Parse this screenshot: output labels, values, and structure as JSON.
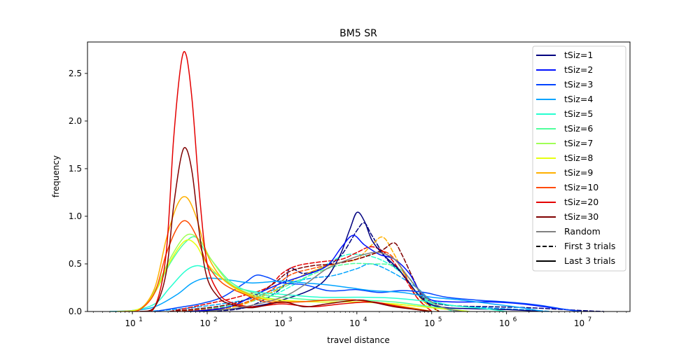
{
  "chart_data": {
    "type": "line",
    "title": "BM5 SR",
    "xlabel": "travel distance",
    "ylabel": "frequency",
    "xscale": "log",
    "xlim_log10": [
      0.4,
      7.65
    ],
    "ylim": [
      0,
      2.83
    ],
    "x_ticks": [
      {
        "base": "10",
        "exp": "1",
        "value": 10
      },
      {
        "base": "10",
        "exp": "2",
        "value": 100
      },
      {
        "base": "10",
        "exp": "3",
        "value": 1000
      },
      {
        "base": "10",
        "exp": "4",
        "value": 10000
      },
      {
        "base": "10",
        "exp": "5",
        "value": 100000
      },
      {
        "base": "10",
        "exp": "6",
        "value": 1000000
      },
      {
        "base": "10",
        "exp": "7",
        "value": 10000000
      }
    ],
    "y_ticks": [
      "0.0",
      "0.5",
      "1.0",
      "1.5",
      "2.0",
      "2.5"
    ],
    "legend_position": "top-right",
    "legend": [
      {
        "label": "tSiz=1",
        "color": "#00007f",
        "dash": "solid"
      },
      {
        "label": "tSiz=2",
        "color": "#0010ff",
        "dash": "solid"
      },
      {
        "label": "tSiz=3",
        "color": "#0044ff",
        "dash": "solid"
      },
      {
        "label": "tSiz=4",
        "color": "#00a4ff",
        "dash": "solid"
      },
      {
        "label": "tSiz=5",
        "color": "#26ffd0",
        "dash": "solid"
      },
      {
        "label": "tSiz=6",
        "color": "#50ff9c",
        "dash": "solid"
      },
      {
        "label": "tSiz=7",
        "color": "#a0ff56",
        "dash": "solid"
      },
      {
        "label": "tSiz=8",
        "color": "#e6ff10",
        "dash": "solid"
      },
      {
        "label": "tSiz=9",
        "color": "#ffb000",
        "dash": "solid"
      },
      {
        "label": "tSiz=10",
        "color": "#ff4a00",
        "dash": "solid"
      },
      {
        "label": "tSiz=20",
        "color": "#e40000",
        "dash": "solid"
      },
      {
        "label": "tSiz=30",
        "color": "#7f0000",
        "dash": "solid"
      },
      {
        "label": "Random",
        "color": "#808080",
        "dash": "solid"
      },
      {
        "label": "First 3 trials",
        "color": "#000000",
        "dash": "dashed"
      },
      {
        "label": "Last 3 trials",
        "color": "#000000",
        "dash": "solid"
      }
    ],
    "series": [
      {
        "name": "tSiz=1 last",
        "color": "#00007f",
        "dash": "solid",
        "x_log10": [
          1.7,
          2.2,
          2.6,
          3.0,
          3.5,
          3.75,
          3.9,
          4.0,
          4.1,
          4.2,
          4.35,
          4.55,
          4.7,
          4.85,
          5.0,
          5.2,
          5.5,
          6.0,
          6.5
        ],
        "values": [
          0.0,
          0.02,
          0.05,
          0.12,
          0.28,
          0.55,
          0.85,
          1.04,
          0.95,
          0.75,
          0.6,
          0.45,
          0.3,
          0.15,
          0.07,
          0.04,
          0.03,
          0.02,
          0.0
        ]
      },
      {
        "name": "tSiz=1 first",
        "color": "#00007f",
        "dash": "dashed",
        "x_log10": [
          1.8,
          2.5,
          3.0,
          3.1,
          3.3,
          3.6,
          3.8,
          4.0,
          4.1,
          4.2,
          4.4,
          4.6,
          4.8,
          5.0,
          5.3,
          5.8,
          6.3,
          7.0,
          7.3
        ],
        "values": [
          0.0,
          0.04,
          0.25,
          0.45,
          0.4,
          0.48,
          0.6,
          0.85,
          0.93,
          0.8,
          0.55,
          0.4,
          0.2,
          0.1,
          0.06,
          0.05,
          0.04,
          0.01,
          0.0
        ]
      },
      {
        "name": "tSiz=2 last",
        "color": "#0010ff",
        "dash": "solid",
        "x_log10": [
          1.8,
          2.3,
          2.65,
          3.0,
          3.3,
          3.6,
          3.8,
          3.95,
          4.1,
          4.3,
          4.5,
          4.7,
          4.85,
          5.0,
          5.3,
          5.8,
          6.2,
          6.6,
          7.0
        ],
        "values": [
          0.0,
          0.05,
          0.18,
          0.3,
          0.38,
          0.48,
          0.68,
          0.8,
          0.7,
          0.6,
          0.55,
          0.4,
          0.2,
          0.12,
          0.1,
          0.1,
          0.08,
          0.04,
          0.0
        ]
      },
      {
        "name": "tSiz=3 last",
        "color": "#0044ff",
        "dash": "solid",
        "x_log10": [
          1.3,
          1.6,
          1.9,
          2.2,
          2.5,
          2.65,
          2.8,
          3.0,
          3.3,
          3.6,
          3.8,
          4.0,
          4.3,
          4.6,
          4.9,
          5.2,
          5.6,
          6.0,
          6.4,
          6.8,
          7.0
        ],
        "values": [
          0.0,
          0.04,
          0.08,
          0.15,
          0.3,
          0.38,
          0.36,
          0.3,
          0.28,
          0.22,
          0.22,
          0.23,
          0.2,
          0.22,
          0.2,
          0.15,
          0.12,
          0.1,
          0.07,
          0.02,
          0.0
        ]
      },
      {
        "name": "tSiz=4 last",
        "color": "#00a4ff",
        "dash": "solid",
        "x_log10": [
          0.7,
          1.0,
          1.3,
          1.6,
          1.8,
          2.0,
          2.3,
          2.6,
          3.0,
          3.3,
          3.6,
          3.9,
          4.2,
          4.6,
          5.0,
          5.4,
          5.8,
          6.2,
          6.5
        ],
        "values": [
          0.0,
          0.01,
          0.05,
          0.18,
          0.3,
          0.35,
          0.33,
          0.3,
          0.32,
          0.3,
          0.28,
          0.25,
          0.22,
          0.2,
          0.15,
          0.12,
          0.08,
          0.04,
          0.0
        ]
      },
      {
        "name": "tSiz=4 first",
        "color": "#00a4ff",
        "dash": "dashed",
        "x_log10": [
          1.2,
          1.8,
          2.5,
          2.8,
          3.1,
          3.4,
          3.7,
          4.0,
          4.2,
          4.5,
          4.8,
          5.0,
          5.3,
          5.7,
          6.2,
          6.6
        ],
        "values": [
          0.0,
          0.04,
          0.12,
          0.2,
          0.3,
          0.35,
          0.38,
          0.45,
          0.5,
          0.4,
          0.25,
          0.12,
          0.06,
          0.04,
          0.02,
          0.0
        ]
      },
      {
        "name": "tSiz=5 last",
        "color": "#26ffd0",
        "dash": "solid",
        "x_log10": [
          0.7,
          1.0,
          1.3,
          1.5,
          1.7,
          1.85,
          2.0,
          2.2,
          2.4,
          2.7,
          3.0,
          3.5,
          4.0,
          4.5,
          5.0,
          5.3,
          5.7,
          6.0
        ],
        "values": [
          0.0,
          0.01,
          0.08,
          0.25,
          0.42,
          0.48,
          0.45,
          0.35,
          0.25,
          0.2,
          0.18,
          0.15,
          0.15,
          0.14,
          0.1,
          0.06,
          0.03,
          0.0
        ]
      },
      {
        "name": "tSiz=5 first",
        "color": "#26ffd0",
        "dash": "dashed",
        "x_log10": [
          1.5,
          2.2,
          2.8,
          3.2,
          3.5,
          3.8,
          4.0,
          4.3,
          4.6,
          4.8,
          5.0,
          5.3
        ],
        "values": [
          0.0,
          0.05,
          0.15,
          0.3,
          0.45,
          0.58,
          0.6,
          0.55,
          0.4,
          0.2,
          0.08,
          0.0
        ]
      },
      {
        "name": "tSiz=6 last",
        "color": "#50ff9c",
        "dash": "solid",
        "x_log10": [
          0.8,
          1.1,
          1.3,
          1.5,
          1.7,
          1.85,
          2.0,
          2.3,
          2.6,
          3.0,
          3.5,
          4.0,
          4.5,
          5.0,
          5.5
        ],
        "values": [
          0.0,
          0.03,
          0.2,
          0.5,
          0.72,
          0.78,
          0.6,
          0.32,
          0.2,
          0.15,
          0.12,
          0.12,
          0.1,
          0.05,
          0.0
        ]
      },
      {
        "name": "tSiz=6 first",
        "color": "#50ff9c",
        "dash": "dashed",
        "x_log10": [
          1.5,
          2.3,
          2.8,
          3.2,
          3.6,
          3.9,
          4.2,
          4.5,
          4.7,
          4.9,
          5.1,
          5.4
        ],
        "values": [
          0.0,
          0.05,
          0.18,
          0.32,
          0.45,
          0.5,
          0.5,
          0.48,
          0.35,
          0.15,
          0.05,
          0.0
        ]
      },
      {
        "name": "tSiz=7 last",
        "color": "#a0ff56",
        "dash": "solid",
        "x_log10": [
          0.8,
          1.1,
          1.3,
          1.5,
          1.72,
          1.9,
          2.05,
          2.3,
          2.6,
          3.0,
          3.5,
          4.0,
          4.5,
          5.0,
          5.5
        ],
        "values": [
          0.0,
          0.03,
          0.22,
          0.55,
          0.8,
          0.75,
          0.55,
          0.3,
          0.18,
          0.12,
          0.1,
          0.1,
          0.08,
          0.04,
          0.0
        ]
      },
      {
        "name": "tSiz=8 last",
        "color": "#e6ff10",
        "dash": "solid",
        "x_log10": [
          0.8,
          1.1,
          1.3,
          1.5,
          1.7,
          1.85,
          2.0,
          2.3,
          2.6,
          3.0,
          3.5,
          4.0,
          4.5,
          5.0,
          5.5
        ],
        "values": [
          0.0,
          0.03,
          0.2,
          0.52,
          0.74,
          0.7,
          0.5,
          0.28,
          0.16,
          0.12,
          0.1,
          0.1,
          0.08,
          0.04,
          0.0
        ]
      },
      {
        "name": "tSiz=9 last",
        "color": "#ffb000",
        "dash": "solid",
        "x_log10": [
          0.9,
          1.1,
          1.3,
          1.45,
          1.6,
          1.72,
          1.85,
          2.0,
          2.2,
          2.5,
          2.8,
          3.2,
          3.6,
          4.0,
          4.4,
          4.8,
          5.0
        ],
        "values": [
          0.0,
          0.02,
          0.25,
          0.75,
          1.12,
          1.2,
          1.0,
          0.6,
          0.35,
          0.2,
          0.12,
          0.1,
          0.12,
          0.12,
          0.08,
          0.03,
          0.0
        ]
      },
      {
        "name": "tSiz=9 first",
        "color": "#ffb000",
        "dash": "dashed",
        "x_log10": [
          1.5,
          2.3,
          2.8,
          3.2,
          3.5,
          3.8,
          4.0,
          4.2,
          4.35,
          4.5,
          4.7,
          4.9,
          5.1
        ],
        "values": [
          0.0,
          0.04,
          0.18,
          0.35,
          0.45,
          0.52,
          0.55,
          0.7,
          0.78,
          0.6,
          0.3,
          0.1,
          0.0
        ]
      },
      {
        "name": "tSiz=10 last",
        "color": "#ff4a00",
        "dash": "solid",
        "x_log10": [
          0.9,
          1.1,
          1.3,
          1.45,
          1.6,
          1.72,
          1.85,
          2.0,
          2.2,
          2.5,
          2.8,
          3.2,
          3.6,
          4.0,
          4.4,
          4.8,
          5.0
        ],
        "values": [
          0.0,
          0.02,
          0.2,
          0.6,
          0.88,
          0.95,
          0.8,
          0.5,
          0.3,
          0.18,
          0.1,
          0.1,
          0.12,
          0.12,
          0.07,
          0.02,
          0.0
        ]
      },
      {
        "name": "tSiz=10 first",
        "color": "#ff4a00",
        "dash": "dashed",
        "x_log10": [
          1.5,
          2.3,
          2.8,
          3.1,
          3.4,
          3.7,
          4.0,
          4.2,
          4.4,
          4.6,
          4.8,
          5.0
        ],
        "values": [
          0.0,
          0.05,
          0.2,
          0.38,
          0.45,
          0.5,
          0.55,
          0.6,
          0.62,
          0.45,
          0.15,
          0.0
        ]
      },
      {
        "name": "tSiz=20 last",
        "color": "#e40000",
        "dash": "solid",
        "x_log10": [
          1.1,
          1.3,
          1.45,
          1.55,
          1.65,
          1.72,
          1.8,
          1.9,
          2.0,
          2.15,
          2.3,
          2.6,
          3.0,
          3.4,
          3.8,
          4.2,
          4.5,
          4.8,
          5.0
        ],
        "values": [
          0.0,
          0.05,
          0.6,
          1.8,
          2.6,
          2.69,
          2.2,
          1.2,
          0.5,
          0.2,
          0.1,
          0.05,
          0.08,
          0.05,
          0.08,
          0.1,
          0.06,
          0.02,
          0.0
        ]
      },
      {
        "name": "tSiz=20 first",
        "color": "#e40000",
        "dash": "dashed",
        "x_log10": [
          1.5,
          2.0,
          2.4,
          2.8,
          3.0,
          3.2,
          3.5,
          3.8,
          4.0,
          4.2,
          4.4,
          4.6,
          4.8,
          5.0
        ],
        "values": [
          0.0,
          0.08,
          0.15,
          0.25,
          0.4,
          0.48,
          0.52,
          0.55,
          0.62,
          0.68,
          0.6,
          0.4,
          0.15,
          0.0
        ]
      },
      {
        "name": "tSiz=30 last",
        "color": "#7f0000",
        "dash": "solid",
        "x_log10": [
          1.1,
          1.3,
          1.45,
          1.55,
          1.65,
          1.72,
          1.8,
          1.9,
          2.0,
          2.15,
          2.3,
          2.6,
          3.0,
          3.3,
          3.6,
          4.0,
          4.2,
          4.5,
          4.8,
          5.0
        ],
        "values": [
          0.0,
          0.05,
          0.4,
          1.1,
          1.62,
          1.71,
          1.45,
          0.8,
          0.35,
          0.15,
          0.08,
          0.04,
          0.1,
          0.05,
          0.08,
          0.12,
          0.1,
          0.05,
          0.02,
          0.0
        ]
      },
      {
        "name": "tSiz=30 first",
        "color": "#7f0000",
        "dash": "dashed",
        "x_log10": [
          1.5,
          2.2,
          2.6,
          2.9,
          3.1,
          3.4,
          3.7,
          4.0,
          4.2,
          4.35,
          4.5,
          4.6,
          4.75,
          4.9,
          5.1
        ],
        "values": [
          0.0,
          0.06,
          0.15,
          0.3,
          0.42,
          0.48,
          0.5,
          0.55,
          0.6,
          0.65,
          0.72,
          0.6,
          0.35,
          0.12,
          0.0
        ]
      },
      {
        "name": "Random",
        "color": "#808080",
        "dash": "solid",
        "x_log10": [
          2.0,
          2.5,
          3.0,
          3.3,
          3.6,
          3.9,
          4.1,
          4.3,
          4.5,
          4.65,
          4.8,
          5.0,
          5.2,
          5.4
        ],
        "values": [
          0.0,
          0.05,
          0.15,
          0.28,
          0.45,
          0.55,
          0.6,
          0.62,
          0.55,
          0.4,
          0.25,
          0.1,
          0.03,
          0.0
        ]
      }
    ]
  }
}
